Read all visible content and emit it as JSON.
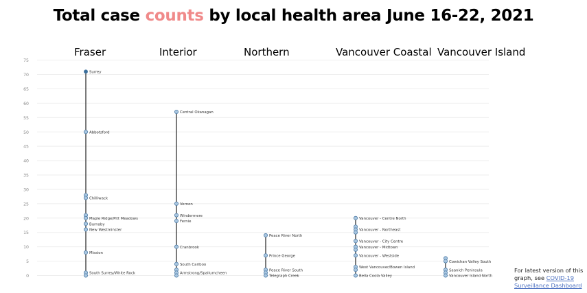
{
  "header": {
    "title_before": "Total case ",
    "title_highlight": "counts",
    "title_after": " by local health area June 16-22, 2021",
    "highlight_color": "#f08a8a"
  },
  "note": {
    "text": "For latest version of this graph, see ",
    "link_text": "COVID-19 Surveillance Dashboard"
  },
  "chart_data": {
    "type": "scatter",
    "title": "Total case counts by local health area June 16-22, 2021",
    "ylim": [
      0,
      75
    ],
    "y_ticks": [
      0,
      5,
      10,
      15,
      20,
      25,
      30,
      35,
      40,
      45,
      50,
      55,
      60,
      65,
      70,
      75
    ],
    "grid": true,
    "colors": {
      "point": "#a9c6e0",
      "point_top": "#3b6f9c",
      "stroke": "#4c7ba6",
      "line": "#222222",
      "grid": "#eeeeee"
    },
    "series": [
      {
        "name": "Fraser",
        "points": [
          {
            "y": 71,
            "label": "Surrey"
          },
          {
            "y": 50,
            "label": "Abbotsford"
          },
          {
            "y": 28,
            "label": ""
          },
          {
            "y": 27,
            "label": "Chilliwack"
          },
          {
            "y": 21,
            "label": ""
          },
          {
            "y": 20,
            "label": "Maple Ridge/Pitt Meadows"
          },
          {
            "y": 18,
            "label": "Burnaby"
          },
          {
            "y": 16,
            "label": "New Westminster"
          },
          {
            "y": 8,
            "label": "Mission"
          },
          {
            "y": 1,
            "label": "South Surrey/White Rock"
          },
          {
            "y": 0,
            "label": ""
          }
        ]
      },
      {
        "name": "Interior",
        "points": [
          {
            "y": 57,
            "label": "Central Okanagan"
          },
          {
            "y": 25,
            "label": "Vernon"
          },
          {
            "y": 21,
            "label": "Windermere"
          },
          {
            "y": 19,
            "label": "Fernie"
          },
          {
            "y": 10,
            "label": "Cranbrook"
          },
          {
            "y": 4,
            "label": "South Cariboo"
          },
          {
            "y": 2,
            "label": ""
          },
          {
            "y": 1,
            "label": "Armstrong/Spallumcheen"
          },
          {
            "y": 0,
            "label": ""
          }
        ]
      },
      {
        "name": "Northern",
        "points": [
          {
            "y": 14,
            "label": "Peace River North"
          },
          {
            "y": 7,
            "label": "Prince George"
          },
          {
            "y": 2,
            "label": "Peace River South"
          },
          {
            "y": 1,
            "label": ""
          },
          {
            "y": 0,
            "label": "Telegraph Creek"
          }
        ]
      },
      {
        "name": "Vancouver Coastal",
        "points": [
          {
            "y": 20,
            "label": "Vancouver - Centre North"
          },
          {
            "y": 17,
            "label": ""
          },
          {
            "y": 16,
            "label": "Vancouver - Northeast"
          },
          {
            "y": 15,
            "label": ""
          },
          {
            "y": 12,
            "label": "Vancouver - City Centre"
          },
          {
            "y": 10,
            "label": "Vancouver - Midtown"
          },
          {
            "y": 9,
            "label": ""
          },
          {
            "y": 7,
            "label": "Vancouver - Westside"
          },
          {
            "y": 3,
            "label": "West Vancouver/Bowen Island"
          },
          {
            "y": 2,
            "label": ""
          },
          {
            "y": 0,
            "label": "Bella Coola Valley"
          }
        ]
      },
      {
        "name": "Vancouver Island",
        "points": [
          {
            "y": 6,
            "label": ""
          },
          {
            "y": 5,
            "label": "Cowichan Valley South"
          },
          {
            "y": 2,
            "label": "Saanich Peninsula"
          },
          {
            "y": 1,
            "label": ""
          },
          {
            "y": 0,
            "label": "Vancouver Island North"
          }
        ]
      }
    ]
  }
}
